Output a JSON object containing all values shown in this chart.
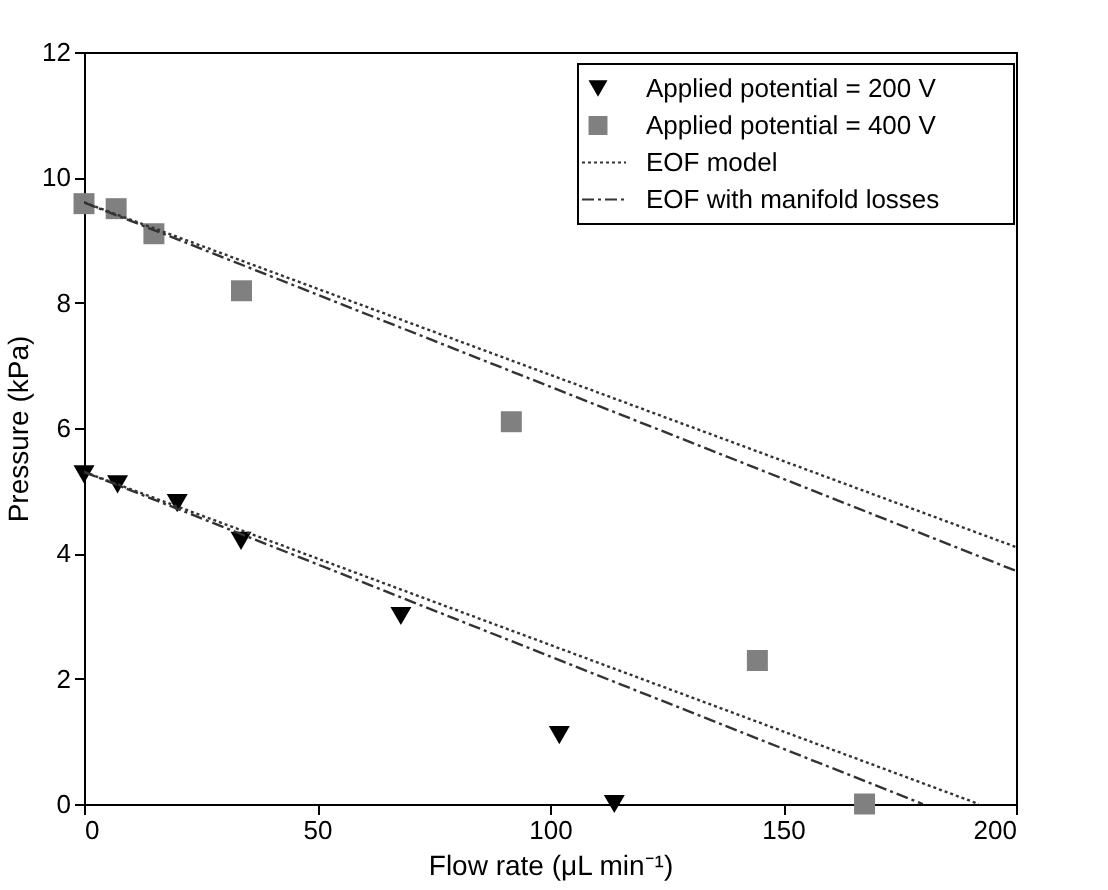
{
  "chart_data": {
    "type": "scatter",
    "xlabel": "Flow rate (μL min⁻¹)",
    "ylabel": "Pressure (kPa)",
    "xlim": [
      0,
      200
    ],
    "xticks": [
      0,
      50,
      100,
      150,
      200
    ],
    "ylim": [
      0,
      12
    ],
    "yticks": [
      0,
      2,
      4,
      6,
      8,
      10,
      12
    ],
    "grid": false,
    "legend": "top right",
    "series": [
      {
        "name": "Applied potential = 200 V",
        "marker": "triangle",
        "color": "#000000",
        "x": [
          0,
          7.2,
          20,
          33.7,
          68,
          102,
          113.8
        ],
        "values": [
          5.26,
          5.1,
          4.8,
          4.2,
          3.0,
          1.1,
          0.0
        ]
      },
      {
        "name": "Applied potential = 400 V",
        "marker": "square",
        "color": "#808080",
        "x": [
          0,
          6.9,
          15,
          33.8,
          91.7,
          144.5,
          167.5
        ],
        "values": [
          9.58,
          9.5,
          9.1,
          8.19,
          6.1,
          2.29,
          0.0
        ]
      },
      {
        "name": "EOF model",
        "type": "line",
        "line_style": "dotted",
        "color": "#333333",
        "x": [
          0,
          200
        ],
        "values": [
          9.6,
          4.1
        ]
      },
      {
        "name": "EOF with manifold losses",
        "type": "line",
        "line_style": "dashed",
        "color": "#333333",
        "x": [
          0,
          200
        ],
        "values": [
          9.6,
          3.72
        ]
      },
      {
        "type": "line",
        "line_style": "dotted",
        "color": "#333333",
        "x": [
          0,
          192
        ],
        "values": [
          5.3,
          0
        ]
      },
      {
        "type": "line",
        "line_style": "dashed",
        "color": "#333333",
        "x": [
          0,
          180
        ],
        "values": [
          5.3,
          0
        ]
      }
    ]
  }
}
